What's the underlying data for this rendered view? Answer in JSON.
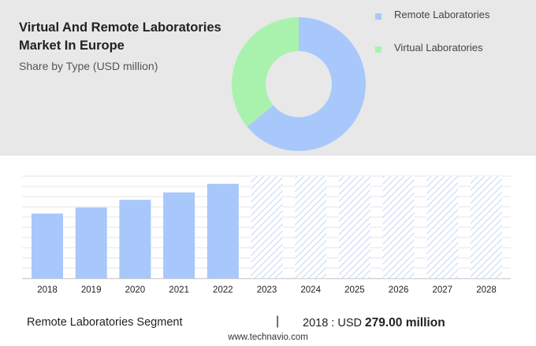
{
  "header": {
    "title": "Virtual And Remote Laboratories Market In Europe",
    "subtitle": "Share by Type (USD million)"
  },
  "legend": [
    {
      "label": "Remote Laboratories",
      "color": "#a8c8fb"
    },
    {
      "label": "Virtual Laboratories",
      "color": "#a9f2ad"
    }
  ],
  "footer": {
    "segment_label": "Remote Laboratories Segment",
    "divider": "|",
    "year_label": "2018 : USD",
    "value_text": "279.00 million",
    "url": "www.technavio.com"
  },
  "chart_data": [
    {
      "type": "pie",
      "subtype": "donut",
      "categories": [
        "Remote Laboratories",
        "Virtual Laboratories"
      ],
      "values": [
        64,
        36
      ],
      "colors": [
        "#a8c8fb",
        "#a9f2ad"
      ]
    },
    {
      "type": "bar",
      "categories": [
        "2018",
        "2019",
        "2020",
        "2021",
        "2022",
        "2023",
        "2024",
        "2025",
        "2026",
        "2027",
        "2028"
      ],
      "values": [
        279.0,
        305,
        338,
        370,
        407,
        null,
        null,
        null,
        null,
        null,
        null
      ],
      "forecast_years": [
        "2023",
        "2024",
        "2025",
        "2026",
        "2027",
        "2028"
      ],
      "ylim": [
        0,
        440
      ],
      "grid": true,
      "bar_color": "#a8c8fb",
      "forecast_color": "#c8d8f8"
    }
  ]
}
